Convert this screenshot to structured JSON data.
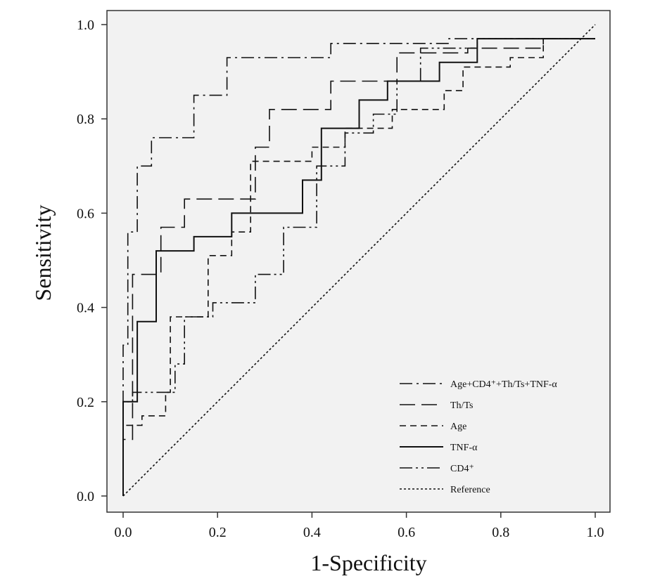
{
  "chart_data": {
    "type": "line",
    "title": "",
    "xlabel": "1-Specificity",
    "ylabel": "Sensitivity",
    "xlim": [
      0.0,
      1.0
    ],
    "ylim": [
      0.0,
      1.0
    ],
    "x_ticks": [
      "0.0",
      "0.2",
      "0.4",
      "0.6",
      "0.8",
      "1.0"
    ],
    "y_ticks": [
      "0.0",
      "0.2",
      "0.4",
      "0.6",
      "0.8",
      "1.0"
    ],
    "grid": false,
    "legend_position": "bottom-right",
    "plot_background": "#f2f2f2",
    "series": [
      {
        "name": "Age+CD4⁺+Th/Ts+TNF-α",
        "style": "dashdot",
        "points": [
          [
            0,
            0
          ],
          [
            0,
            0.26
          ],
          [
            0,
            0.32
          ],
          [
            0.01,
            0.32
          ],
          [
            0.01,
            0.56
          ],
          [
            0.03,
            0.56
          ],
          [
            0.03,
            0.7
          ],
          [
            0.06,
            0.7
          ],
          [
            0.06,
            0.76
          ],
          [
            0.15,
            0.76
          ],
          [
            0.15,
            0.85
          ],
          [
            0.22,
            0.85
          ],
          [
            0.22,
            0.93
          ],
          [
            0.44,
            0.93
          ],
          [
            0.44,
            0.96
          ],
          [
            0.6,
            0.96
          ],
          [
            0.6,
            0.96
          ],
          [
            0.69,
            0.96
          ],
          [
            0.69,
            0.97
          ],
          [
            1.0,
            0.97
          ]
        ]
      },
      {
        "name": "Th/Ts",
        "style": "longdash",
        "points": [
          [
            0,
            0
          ],
          [
            0,
            0.12
          ],
          [
            0.02,
            0.12
          ],
          [
            0.02,
            0.47
          ],
          [
            0.08,
            0.47
          ],
          [
            0.08,
            0.57
          ],
          [
            0.13,
            0.57
          ],
          [
            0.13,
            0.63
          ],
          [
            0.28,
            0.63
          ],
          [
            0.28,
            0.74
          ],
          [
            0.31,
            0.74
          ],
          [
            0.31,
            0.82
          ],
          [
            0.44,
            0.82
          ],
          [
            0.44,
            0.88
          ],
          [
            0.58,
            0.88
          ],
          [
            0.58,
            0.94
          ],
          [
            0.73,
            0.94
          ],
          [
            0.73,
            0.95
          ],
          [
            0.89,
            0.95
          ],
          [
            0.89,
            0.97
          ],
          [
            1.0,
            0.97
          ]
        ]
      },
      {
        "name": "Age",
        "style": "shortdash",
        "points": [
          [
            0,
            0
          ],
          [
            0,
            0.15
          ],
          [
            0.04,
            0.15
          ],
          [
            0.04,
            0.17
          ],
          [
            0.09,
            0.17
          ],
          [
            0.09,
            0.22
          ],
          [
            0.1,
            0.22
          ],
          [
            0.1,
            0.38
          ],
          [
            0.18,
            0.38
          ],
          [
            0.18,
            0.51
          ],
          [
            0.23,
            0.51
          ],
          [
            0.23,
            0.56
          ],
          [
            0.27,
            0.56
          ],
          [
            0.27,
            0.71
          ],
          [
            0.4,
            0.71
          ],
          [
            0.4,
            0.74
          ],
          [
            0.47,
            0.74
          ],
          [
            0.47,
            0.78
          ],
          [
            0.57,
            0.78
          ],
          [
            0.57,
            0.82
          ],
          [
            0.68,
            0.82
          ],
          [
            0.68,
            0.86
          ],
          [
            0.72,
            0.86
          ],
          [
            0.72,
            0.91
          ],
          [
            0.82,
            0.91
          ],
          [
            0.82,
            0.93
          ],
          [
            0.89,
            0.93
          ],
          [
            0.89,
            0.97
          ],
          [
            1.0,
            0.97
          ]
        ]
      },
      {
        "name": "TNF-α",
        "style": "solid",
        "points": [
          [
            0,
            0
          ],
          [
            0,
            0.2
          ],
          [
            0.03,
            0.2
          ],
          [
            0.03,
            0.37
          ],
          [
            0.07,
            0.37
          ],
          [
            0.07,
            0.52
          ],
          [
            0.15,
            0.52
          ],
          [
            0.15,
            0.55
          ],
          [
            0.23,
            0.55
          ],
          [
            0.23,
            0.6
          ],
          [
            0.38,
            0.6
          ],
          [
            0.38,
            0.67
          ],
          [
            0.42,
            0.67
          ],
          [
            0.42,
            0.78
          ],
          [
            0.5,
            0.78
          ],
          [
            0.5,
            0.84
          ],
          [
            0.56,
            0.84
          ],
          [
            0.56,
            0.88
          ],
          [
            0.67,
            0.88
          ],
          [
            0.67,
            0.92
          ],
          [
            0.75,
            0.92
          ],
          [
            0.75,
            0.97
          ],
          [
            1.0,
            0.97
          ]
        ]
      },
      {
        "name": "CD4⁺",
        "style": "dashdotdot",
        "points": [
          [
            0,
            0
          ],
          [
            0,
            0.2
          ],
          [
            0.02,
            0.2
          ],
          [
            0.02,
            0.22
          ],
          [
            0.11,
            0.22
          ],
          [
            0.11,
            0.28
          ],
          [
            0.13,
            0.28
          ],
          [
            0.13,
            0.38
          ],
          [
            0.19,
            0.38
          ],
          [
            0.19,
            0.41
          ],
          [
            0.28,
            0.41
          ],
          [
            0.28,
            0.47
          ],
          [
            0.34,
            0.47
          ],
          [
            0.34,
            0.57
          ],
          [
            0.41,
            0.57
          ],
          [
            0.41,
            0.7
          ],
          [
            0.47,
            0.7
          ],
          [
            0.47,
            0.77
          ],
          [
            0.53,
            0.77
          ],
          [
            0.53,
            0.81
          ],
          [
            0.58,
            0.81
          ],
          [
            0.58,
            0.88
          ],
          [
            0.63,
            0.88
          ],
          [
            0.63,
            0.95
          ],
          [
            0.75,
            0.95
          ],
          [
            0.75,
            0.97
          ],
          [
            1.0,
            0.97
          ]
        ]
      },
      {
        "name": "Reference",
        "style": "dotted",
        "points": [
          [
            0,
            0
          ],
          [
            1,
            1
          ]
        ]
      }
    ]
  }
}
